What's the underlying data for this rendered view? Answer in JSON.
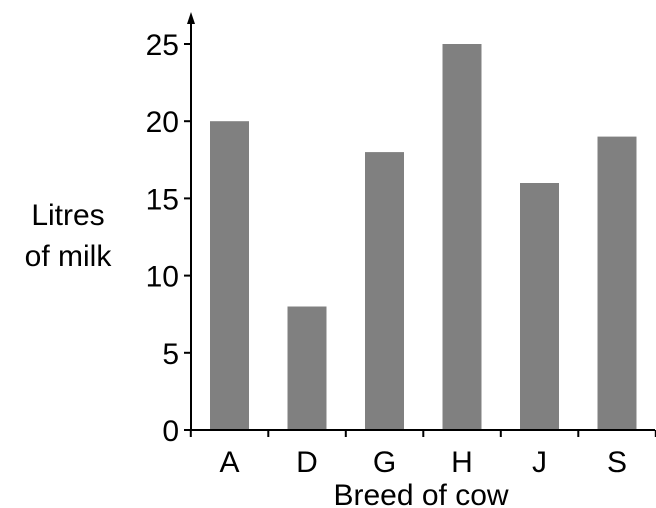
{
  "chart_data": {
    "type": "bar",
    "categories": [
      "A",
      "D",
      "G",
      "H",
      "J",
      "S"
    ],
    "values": [
      20,
      8,
      18,
      25,
      16,
      19
    ],
    "xlabel": "Breed of cow",
    "ylabel_lines": [
      "Litres",
      "of milk"
    ],
    "ylim": [
      0,
      25
    ],
    "yticks": [
      0,
      5,
      10,
      15,
      20,
      25
    ],
    "grid": false,
    "bar_color": "#808080",
    "axis_color": "#000000"
  }
}
